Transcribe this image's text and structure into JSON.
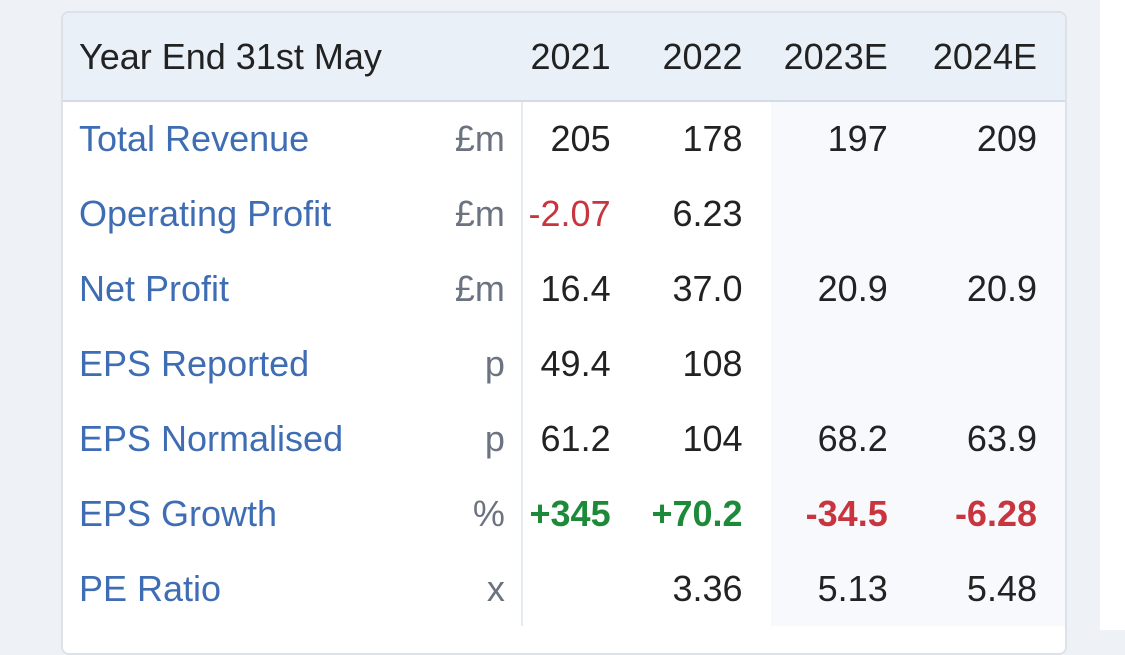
{
  "table": {
    "header": {
      "label": "Year End 31st May",
      "years": [
        "2021",
        "2022",
        "2023E",
        "2024E"
      ]
    },
    "rows": [
      {
        "label": "Total Revenue",
        "unit": "£m",
        "values": [
          "205",
          "178",
          "197",
          "209"
        ]
      },
      {
        "label": "Operating Profit",
        "unit": "£m",
        "values": [
          "-2.07",
          "6.23",
          "",
          ""
        ]
      },
      {
        "label": "Net Profit",
        "unit": "£m",
        "values": [
          "16.4",
          "37.0",
          "20.9",
          "20.9"
        ]
      },
      {
        "label": "EPS Reported",
        "unit": "p",
        "values": [
          "49.4",
          "108",
          "",
          ""
        ]
      },
      {
        "label": "EPS Normalised",
        "unit": "p",
        "values": [
          "61.2",
          "104",
          "68.2",
          "63.9"
        ]
      },
      {
        "label": "EPS Growth",
        "unit": "%",
        "values": [
          "+345",
          "+70.2",
          "-34.5",
          "-6.28"
        ]
      },
      {
        "label": "PE Ratio",
        "unit": "x",
        "values": [
          "",
          "3.36",
          "5.13",
          "5.48"
        ]
      }
    ]
  },
  "colors": {
    "label_link": "#3f6db3",
    "negative": "#c8353f",
    "positive": "#1d8a3a",
    "header_bg": "#eaf0f8"
  }
}
